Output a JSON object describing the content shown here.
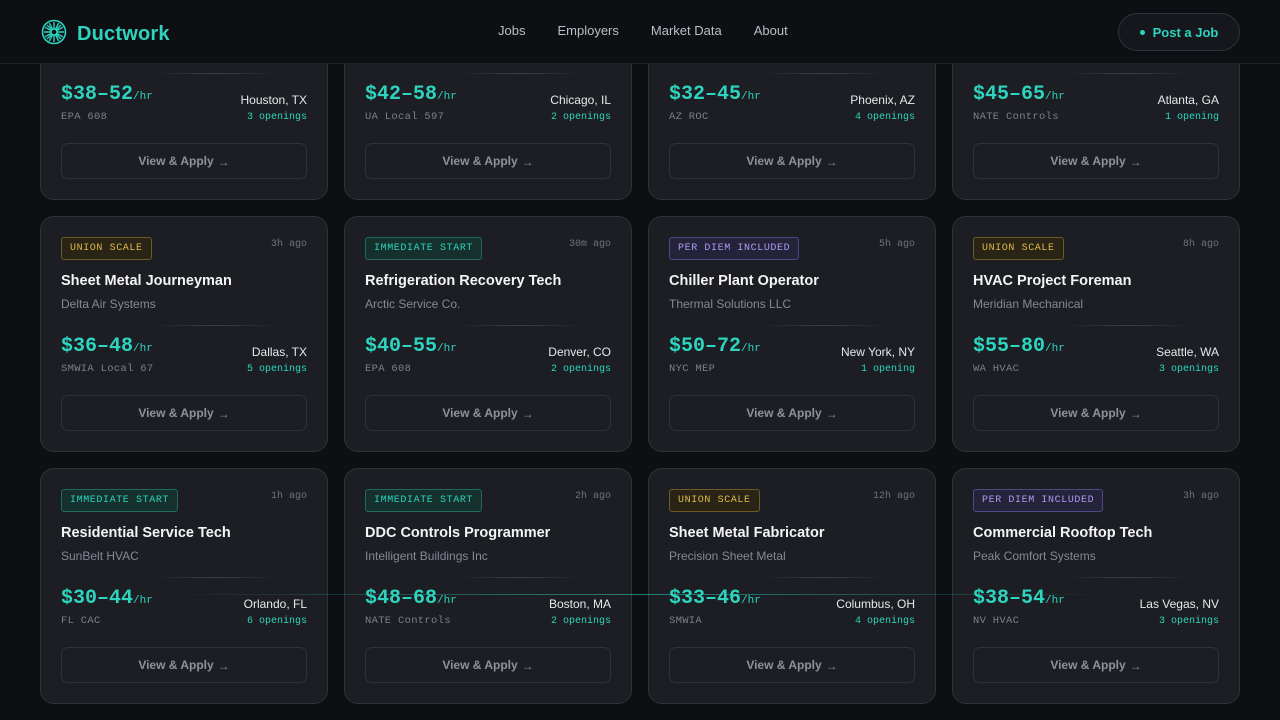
{
  "brand": {
    "name": "Ductwork",
    "logo_icon": "fan-icon",
    "accent": "#2dd4bf"
  },
  "nav": {
    "items": [
      "Jobs",
      "Employers",
      "Market Data",
      "About"
    ]
  },
  "cta": {
    "label": "Post a Job"
  },
  "jobs": [
    {
      "badge": "",
      "badge_type": "",
      "age": "",
      "title": "",
      "company": "",
      "pay": "$38–52",
      "unit": "/hr",
      "cert": "EPA 608",
      "city": "Houston, TX",
      "openings": "3 openings"
    },
    {
      "badge": "",
      "badge_type": "",
      "age": "",
      "title": "",
      "company": "",
      "pay": "$42–58",
      "unit": "/hr",
      "cert": "UA Local 597",
      "city": "Chicago, IL",
      "openings": "2 openings"
    },
    {
      "badge": "",
      "badge_type": "",
      "age": "",
      "title": "",
      "company": "",
      "pay": "$32–45",
      "unit": "/hr",
      "cert": "AZ ROC",
      "city": "Phoenix, AZ",
      "openings": "4 openings"
    },
    {
      "badge": "",
      "badge_type": "",
      "age": "",
      "title": "",
      "company": "",
      "pay": "$45–65",
      "unit": "/hr",
      "cert": "NATE Controls",
      "city": "Atlanta, GA",
      "openings": "1 opening"
    },
    {
      "badge": "UNION SCALE",
      "badge_type": "union",
      "age": "3h ago",
      "title": "Sheet Metal Journeyman",
      "company": "Delta Air Systems",
      "pay": "$36–48",
      "unit": "/hr",
      "cert": "SMWIA Local 67",
      "city": "Dallas, TX",
      "openings": "5 openings"
    },
    {
      "badge": "IMMEDIATE START",
      "badge_type": "immediate",
      "age": "30m ago",
      "title": "Refrigeration Recovery Tech",
      "company": "Arctic Service Co.",
      "pay": "$40–55",
      "unit": "/hr",
      "cert": "EPA 608",
      "city": "Denver, CO",
      "openings": "2 openings"
    },
    {
      "badge": "PER DIEM INCLUDED",
      "badge_type": "perdiem",
      "age": "5h ago",
      "title": "Chiller Plant Operator",
      "company": "Thermal Solutions LLC",
      "pay": "$50–72",
      "unit": "/hr",
      "cert": "NYC MEP",
      "city": "New York, NY",
      "openings": "1 opening"
    },
    {
      "badge": "UNION SCALE",
      "badge_type": "union",
      "age": "8h ago",
      "title": "HVAC Project Foreman",
      "company": "Meridian Mechanical",
      "pay": "$55–80",
      "unit": "/hr",
      "cert": "WA HVAC",
      "city": "Seattle, WA",
      "openings": "3 openings"
    },
    {
      "badge": "IMMEDIATE START",
      "badge_type": "immediate",
      "age": "1h ago",
      "title": "Residential Service Tech",
      "company": "SunBelt HVAC",
      "pay": "$30–44",
      "unit": "/hr",
      "cert": "FL CAC",
      "city": "Orlando, FL",
      "openings": "6 openings"
    },
    {
      "badge": "IMMEDIATE START",
      "badge_type": "immediate",
      "age": "2h ago",
      "title": "DDC Controls Programmer",
      "company": "Intelligent Buildings Inc",
      "pay": "$48–68",
      "unit": "/hr",
      "cert": "NATE Controls",
      "city": "Boston, MA",
      "openings": "2 openings"
    },
    {
      "badge": "UNION SCALE",
      "badge_type": "union",
      "age": "12h ago",
      "title": "Sheet Metal Fabricator",
      "company": "Precision Sheet Metal",
      "pay": "$33–46",
      "unit": "/hr",
      "cert": "SMWIA",
      "city": "Columbus, OH",
      "openings": "4 openings"
    },
    {
      "badge": "PER DIEM INCLUDED",
      "badge_type": "perdiem",
      "age": "3h ago",
      "title": "Commercial Rooftop Tech",
      "company": "Peak Comfort Systems",
      "pay": "$38–54",
      "unit": "/hr",
      "cert": "NV HVAC",
      "city": "Las Vegas, NV",
      "openings": "3 openings"
    }
  ],
  "apply_label": "View & Apply",
  "apply_arrow": "→"
}
